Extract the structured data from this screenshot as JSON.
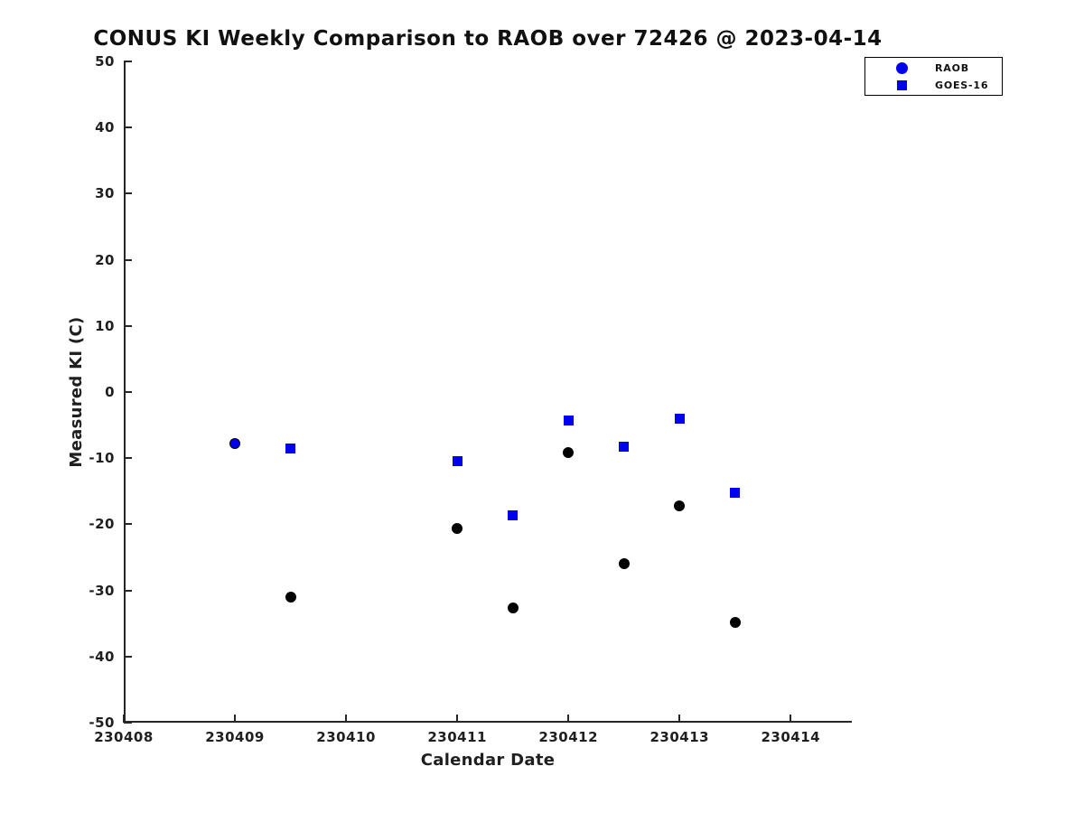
{
  "colors": {
    "marker_blue": "#0000EE",
    "marker_black": "#000000",
    "axis": "#262626",
    "text": "#1f1f1f"
  },
  "chart_data": {
    "type": "scatter",
    "title": "CONUS KI Weekly Comparison to RAOB over 72426 @ 2023-04-14",
    "xlabel": "Calendar Date",
    "ylabel": "Measured KI (C)",
    "xlim": [
      230408,
      230414.55
    ],
    "ylim": [
      -50,
      50
    ],
    "grid": false,
    "xticks": [
      230408,
      230409,
      230410,
      230411,
      230412,
      230413,
      230414
    ],
    "xtick_labels": [
      "230408",
      "230409",
      "230410",
      "230411",
      "230412",
      "230413",
      "230414"
    ],
    "yticks": [
      50,
      40,
      30,
      20,
      10,
      0,
      -10,
      -20,
      -30,
      -40,
      -50
    ],
    "ytick_labels": [
      "50",
      "40",
      "30",
      "20",
      "10",
      "0",
      "-10",
      "-20",
      "-30",
      "-40",
      "-50"
    ],
    "legend": {
      "position": "upper-right-outside",
      "entries": [
        {
          "label": "RAOB",
          "marker": "circle",
          "color": "#0000EE"
        },
        {
          "label": "GOES-16",
          "marker": "square",
          "color": "#0000EE"
        }
      ]
    },
    "series": [
      {
        "name": "RAOB",
        "marker": "circle",
        "points": [
          {
            "x": 230409.0,
            "y": -7.8,
            "fill": "#0000EE",
            "edge": "#000000"
          },
          {
            "x": 230409.5,
            "y": -31.0,
            "fill": "#000000",
            "edge": "#000000"
          },
          {
            "x": 230411.0,
            "y": -20.6,
            "fill": "#000000",
            "edge": "#000000"
          },
          {
            "x": 230411.5,
            "y": -32.7,
            "fill": "#000000",
            "edge": "#000000"
          },
          {
            "x": 230412.0,
            "y": -9.2,
            "fill": "#000000",
            "edge": "#000000"
          },
          {
            "x": 230412.5,
            "y": -26.0,
            "fill": "#000000",
            "edge": "#000000"
          },
          {
            "x": 230413.0,
            "y": -17.2,
            "fill": "#000000",
            "edge": "#000000"
          },
          {
            "x": 230413.5,
            "y": -34.8,
            "fill": "#000000",
            "edge": "#000000"
          }
        ]
      },
      {
        "name": "GOES-16",
        "marker": "square",
        "color": "#0000EE",
        "points": [
          {
            "x": 230409.5,
            "y": -8.6
          },
          {
            "x": 230411.0,
            "y": -10.5
          },
          {
            "x": 230411.5,
            "y": -18.7
          },
          {
            "x": 230412.0,
            "y": -4.3
          },
          {
            "x": 230412.5,
            "y": -8.2
          },
          {
            "x": 230413.0,
            "y": -4.0
          },
          {
            "x": 230413.5,
            "y": -15.3
          }
        ]
      }
    ]
  }
}
